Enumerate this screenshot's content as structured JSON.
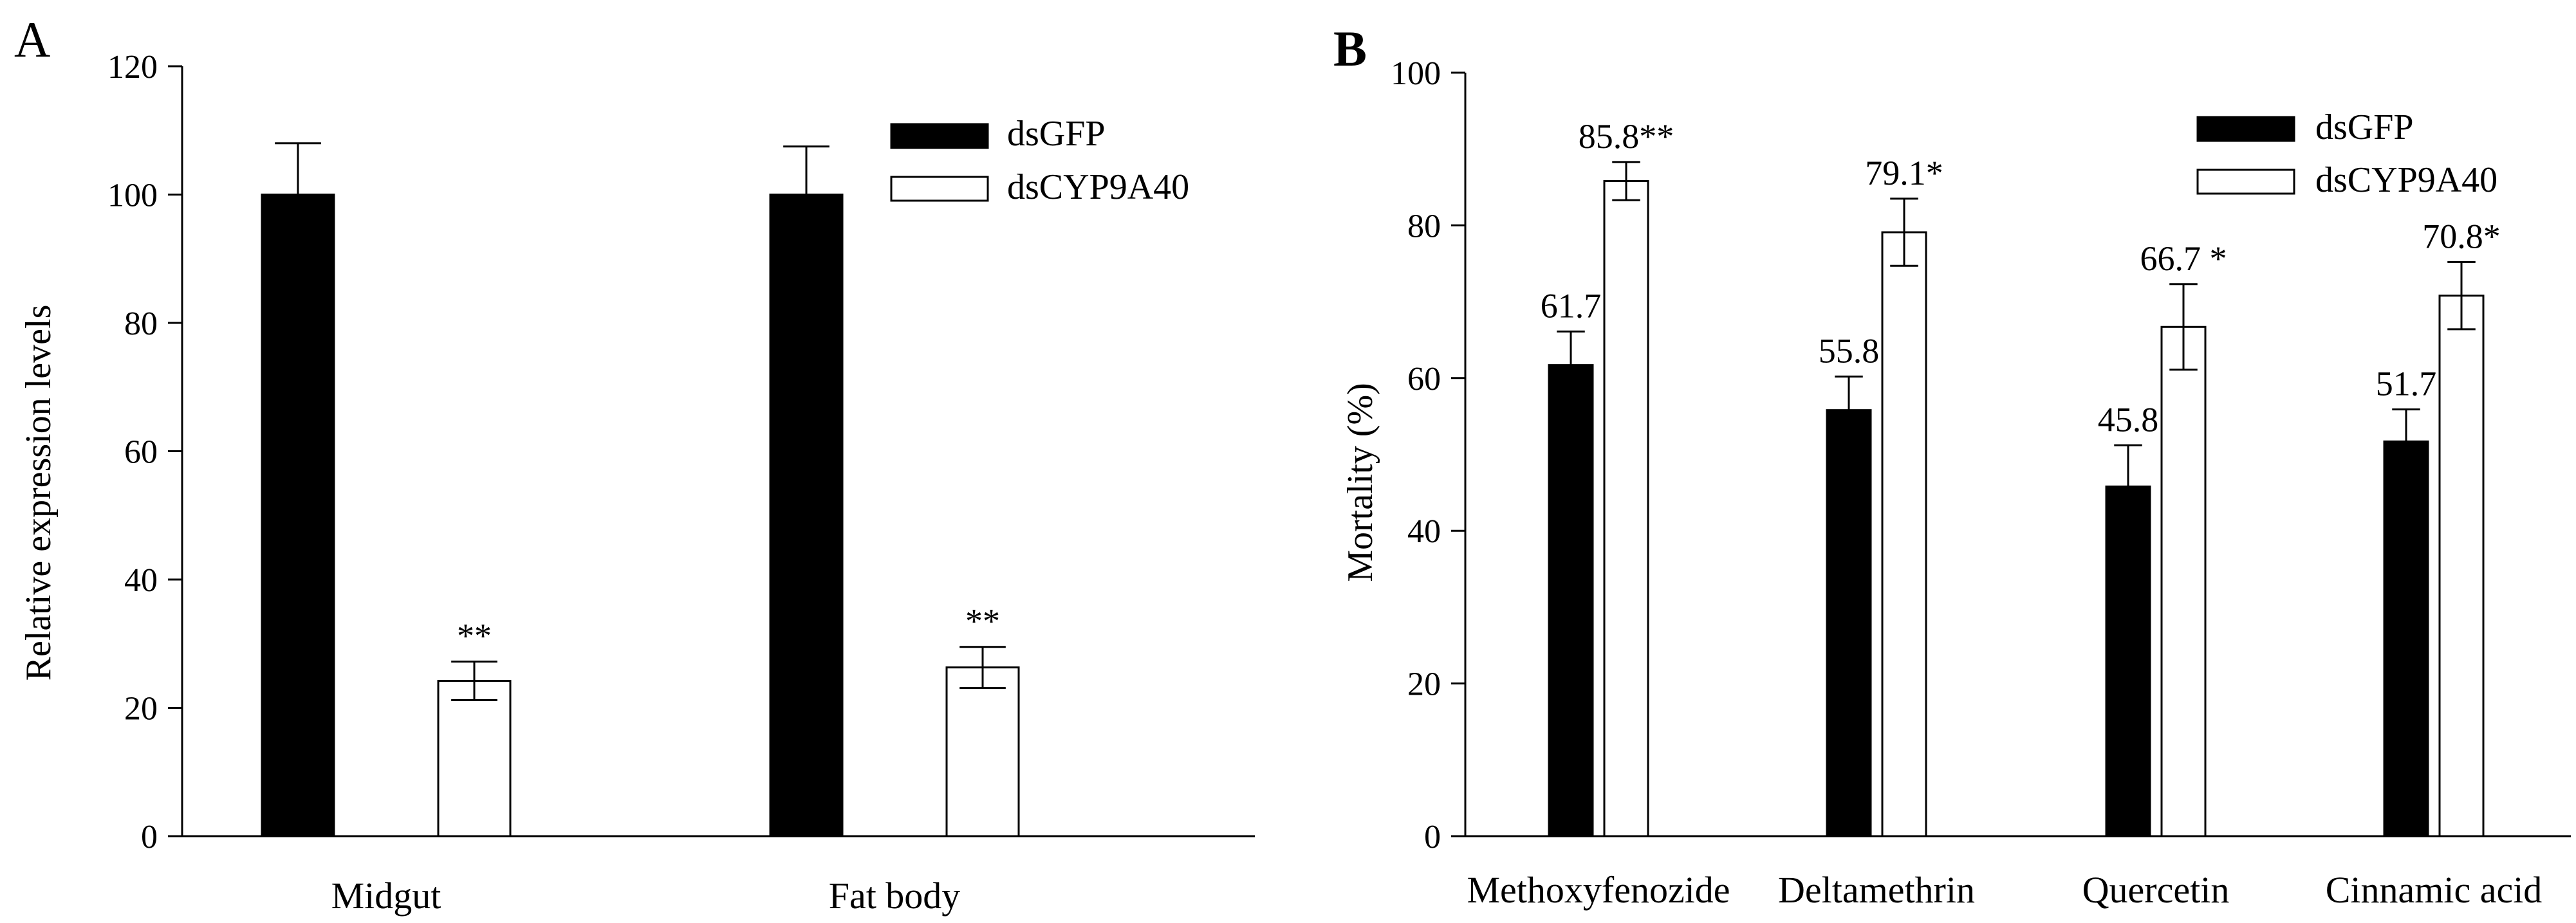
{
  "colors": {
    "dsGFP": "#000000",
    "dsCYP9A40": "#ffffff",
    "stroke": "#000000",
    "background": "#ffffff"
  },
  "chart_data": [
    {
      "panel": "A",
      "type": "bar",
      "ylabel": "Relative expression levels",
      "xlabel": "",
      "ylim": [
        0,
        120
      ],
      "yticks": [
        "0",
        "20",
        "40",
        "60",
        "80",
        "100",
        "120"
      ],
      "categories": [
        "Midgut",
        "Fat body"
      ],
      "legend_position": "top-right",
      "series": [
        {
          "name": "dsGFP",
          "color": "#000000",
          "values": [
            100,
            100
          ],
          "errors": [
            8,
            7.5
          ],
          "labels": [
            "",
            ""
          ]
        },
        {
          "name": "dsCYP9A40",
          "color": "#ffffff",
          "values": [
            24.2,
            26.3
          ],
          "errors": [
            3,
            3.2
          ],
          "labels": [
            "**",
            "**"
          ]
        }
      ]
    },
    {
      "panel": "B",
      "type": "bar",
      "ylabel": "Mortality (%)",
      "xlabel": "",
      "ylim": [
        0,
        100
      ],
      "yticks": [
        "0",
        "20",
        "40",
        "60",
        "80",
        "100"
      ],
      "categories": [
        "Methoxyfenozide",
        "Deltamethrin",
        "Quercetin",
        "Cinnamic acid"
      ],
      "legend_position": "top-right",
      "series": [
        {
          "name": "dsGFP",
          "color": "#000000",
          "values": [
            61.7,
            55.8,
            45.8,
            51.7
          ],
          "errors": [
            4.4,
            4.4,
            5.4,
            4.2
          ],
          "labels": [
            "61.7",
            "55.8",
            "45.8",
            "51.7"
          ]
        },
        {
          "name": "dsCYP9A40",
          "color": "#ffffff",
          "values": [
            85.8,
            79.1,
            66.7,
            70.8
          ],
          "errors": [
            2.5,
            4.4,
            5.6,
            4.4
          ],
          "labels": [
            "85.8**",
            "79.1*",
            "66.7 *",
            "70.8*"
          ]
        }
      ]
    }
  ]
}
